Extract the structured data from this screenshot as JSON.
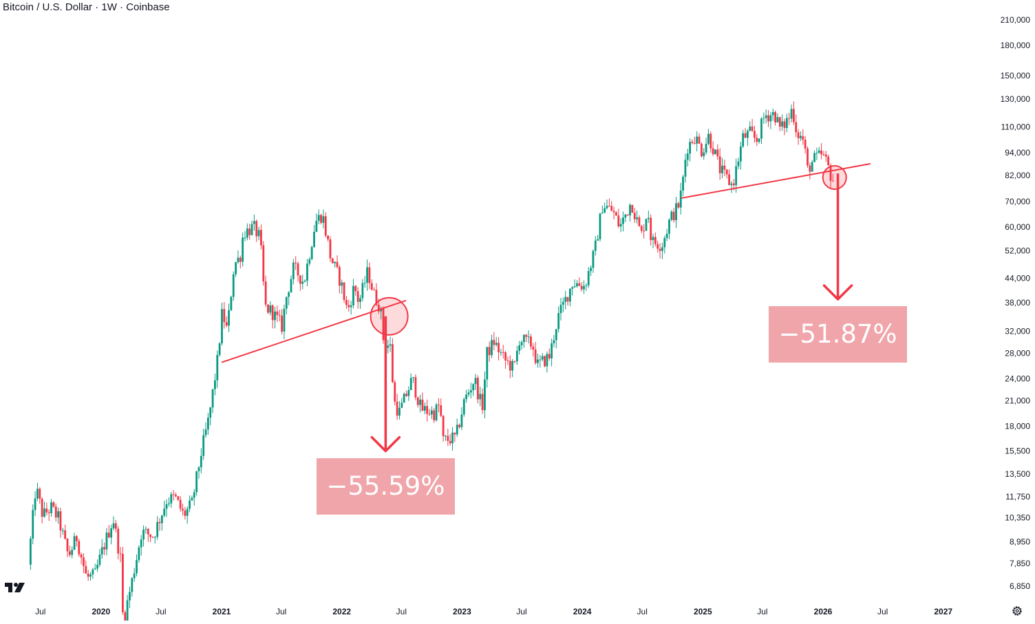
{
  "header": {
    "title": "Bitcoin / U.S. Dollar · 1W · Coinbase"
  },
  "chart_data": {
    "type": "candlestick",
    "title": "Bitcoin / U.S. Dollar · 1W · Coinbase",
    "scale": "log",
    "grid": false,
    "y_ticks": [
      "210,000",
      "180,000",
      "150,000",
      "130,000",
      "110,000",
      "94,000",
      "82,000",
      "70,000",
      "60,000",
      "52,000",
      "44,000",
      "38,000",
      "32,000",
      "28,000",
      "24,000",
      "21,000",
      "18,000",
      "15,500",
      "13,500",
      "11,750",
      "10,350",
      "8,950",
      "7,850",
      "6,850"
    ],
    "x_ticks": [
      "Jul",
      "2020",
      "Jul",
      "2021",
      "Jul",
      "2022",
      "Jul",
      "2023",
      "Jul",
      "2024",
      "Jul",
      "2025",
      "Jul",
      "2026",
      "Jul",
      "2027"
    ],
    "bold_x_ticks": [
      "2020",
      "2021",
      "2022",
      "2023",
      "2024",
      "2025",
      "2026",
      "2027"
    ],
    "colors": {
      "up": "#089981",
      "down": "#f23645",
      "annotation": "#f23645",
      "callout_bg": "#f0a5aa",
      "axis_text": "#131722"
    },
    "path": [
      [
        "2019-06-01",
        7800
      ],
      [
        "2019-06-24",
        12500
      ],
      [
        "2019-07-15",
        10500
      ],
      [
        "2019-08-10",
        11000
      ],
      [
        "2019-09-01",
        10300
      ],
      [
        "2019-10-01",
        8200
      ],
      [
        "2019-10-26",
        9200
      ],
      [
        "2019-11-25",
        7200
      ],
      [
        "2019-12-20",
        7300
      ],
      [
        "2020-01-10",
        8400
      ],
      [
        "2020-02-14",
        10300
      ],
      [
        "2020-03-08",
        8000
      ],
      [
        "2020-03-15",
        5500
      ],
      [
        "2020-04-10",
        7000
      ],
      [
        "2020-05-10",
        9500
      ],
      [
        "2020-06-15",
        9300
      ],
      [
        "2020-07-25",
        11500
      ],
      [
        "2020-08-20",
        11700
      ],
      [
        "2020-09-15",
        10500
      ],
      [
        "2020-10-10",
        11300
      ],
      [
        "2020-11-08",
        15500
      ],
      [
        "2020-12-01",
        19000
      ],
      [
        "2020-12-27",
        27000
      ],
      [
        "2021-01-10",
        36000
      ],
      [
        "2021-01-25",
        32000
      ],
      [
        "2021-02-15",
        48000
      ],
      [
        "2021-03-05",
        50000
      ],
      [
        "2021-03-15",
        58000
      ],
      [
        "2021-04-15",
        60000
      ],
      [
        "2021-05-05",
        56000
      ],
      [
        "2021-05-20",
        37000
      ],
      [
        "2021-06-10",
        36000
      ],
      [
        "2021-07-10",
        33000
      ],
      [
        "2021-07-25",
        40000
      ],
      [
        "2021-08-15",
        47000
      ],
      [
        "2021-09-15",
        43000
      ],
      [
        "2021-10-20",
        62000
      ],
      [
        "2021-11-10",
        65000
      ],
      [
        "2021-12-05",
        50000
      ],
      [
        "2022-01-05",
        43000
      ],
      [
        "2022-01-25",
        36000
      ],
      [
        "2022-02-15",
        42000
      ],
      [
        "2022-03-01",
        38000
      ],
      [
        "2022-03-28",
        46000
      ],
      [
        "2022-04-15",
        40000
      ],
      [
        "2022-05-05",
        37000
      ],
      [
        "2022-05-15",
        30000
      ],
      [
        "2022-06-05",
        29000
      ],
      [
        "2022-06-15",
        21000
      ],
      [
        "2022-07-01",
        19500
      ],
      [
        "2022-08-10",
        24000
      ],
      [
        "2022-09-05",
        20000
      ],
      [
        "2022-10-15",
        19500
      ],
      [
        "2022-11-01",
        20500
      ],
      [
        "2022-11-12",
        16500
      ],
      [
        "2022-12-20",
        16800
      ],
      [
        "2023-01-15",
        21000
      ],
      [
        "2023-02-15",
        24000
      ],
      [
        "2023-03-10",
        20000
      ],
      [
        "2023-03-25",
        28000
      ],
      [
        "2023-04-15",
        30000
      ],
      [
        "2023-05-15",
        27000
      ],
      [
        "2023-06-15",
        25500
      ],
      [
        "2023-07-01",
        30500
      ],
      [
        "2023-08-10",
        29500
      ],
      [
        "2023-08-25",
        26000
      ],
      [
        "2023-10-01",
        27500
      ],
      [
        "2023-10-25",
        34500
      ],
      [
        "2023-12-10",
        43000
      ],
      [
        "2024-01-15",
        42000
      ],
      [
        "2024-02-15",
        52000
      ],
      [
        "2024-03-10",
        69000
      ],
      [
        "2024-04-10",
        66000
      ],
      [
        "2024-05-01",
        60000
      ],
      [
        "2024-06-05",
        70000
      ],
      [
        "2024-07-05",
        57000
      ],
      [
        "2024-07-25",
        67000
      ],
      [
        "2024-08-05",
        55000
      ],
      [
        "2024-09-06",
        54000
      ],
      [
        "2024-10-01",
        63000
      ],
      [
        "2024-10-25",
        68000
      ],
      [
        "2024-11-05",
        75000
      ],
      [
        "2024-11-20",
        97000
      ],
      [
        "2024-12-15",
        104000
      ],
      [
        "2025-01-05",
        95000
      ],
      [
        "2025-01-25",
        104000
      ],
      [
        "2025-02-10",
        96000
      ],
      [
        "2025-03-01",
        85000
      ],
      [
        "2025-04-08",
        77000
      ],
      [
        "2025-05-10",
        103000
      ],
      [
        "2025-06-01",
        106000
      ],
      [
        "2025-06-20",
        101000
      ],
      [
        "2025-07-15",
        118000
      ],
      [
        "2025-08-14",
        119000
      ],
      [
        "2025-09-01",
        108000
      ],
      [
        "2025-10-01",
        118000
      ],
      [
        "2025-10-06",
        124000
      ],
      [
        "2025-10-20",
        107000
      ],
      [
        "2025-11-10",
        101000
      ],
      [
        "2025-11-22",
        85000
      ],
      [
        "2025-12-10",
        90000
      ],
      [
        "2026-01-05",
        93000
      ],
      [
        "2026-01-20",
        88000
      ],
      [
        "2026-02-05",
        80000
      ]
    ],
    "annotations": {
      "trendlines": [
        {
          "from": [
            "2021-01-01",
            26500
          ],
          "to": [
            "2022-07-15",
            38500
          ]
        },
        {
          "from": [
            "2024-10-28",
            71500
          ],
          "to": [
            "2026-05-25",
            88000
          ]
        }
      ],
      "circles": [
        {
          "center": [
            "2022-05-25",
            35000
          ]
        },
        {
          "center": [
            "2026-02-05",
            81000
          ]
        }
      ],
      "arrows": [
        {
          "from": [
            "2022-05-14",
            35000
          ],
          "to": [
            "2022-05-14",
            15500
          ]
        },
        {
          "from": [
            "2026-02-15",
            83000
          ],
          "to": [
            "2026-02-15",
            38800
          ]
        }
      ],
      "callouts": [
        {
          "text": "−55.59%"
        },
        {
          "text": "−51.87%"
        }
      ]
    }
  }
}
